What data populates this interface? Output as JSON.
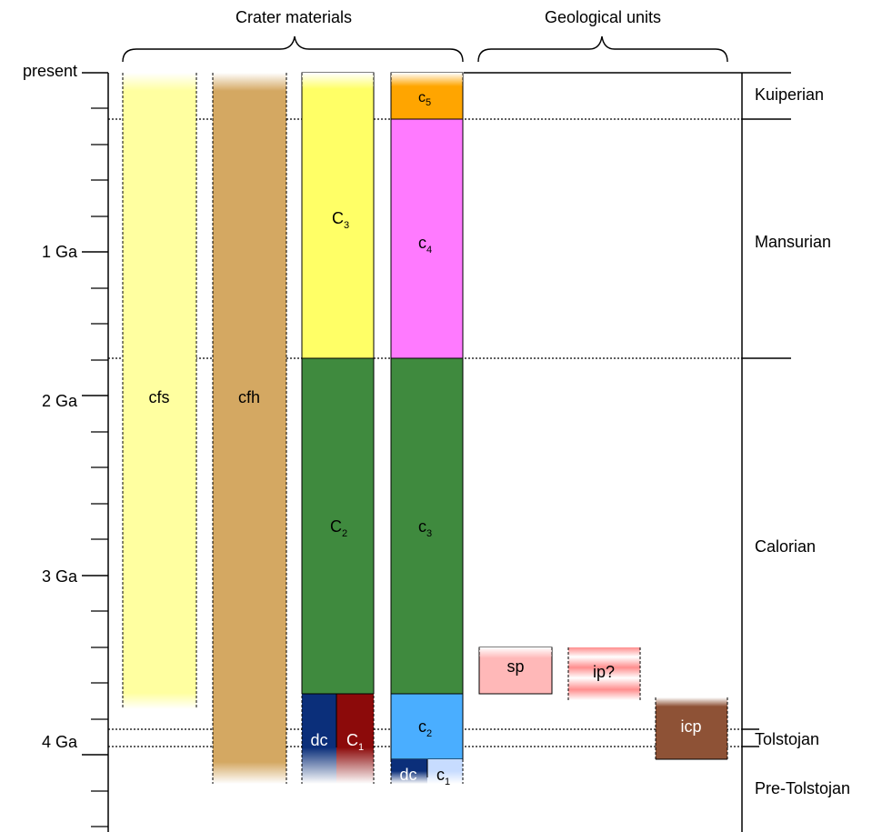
{
  "headers": {
    "crater_materials": "Crater materials",
    "geological_units": "Geological units"
  },
  "time_axis": {
    "top_label": "present",
    "ticks": [
      {
        "label": "1 Ga"
      },
      {
        "label": "2 Ga"
      },
      {
        "label": "3 Ga"
      },
      {
        "label": "4 Ga"
      }
    ]
  },
  "periods": [
    {
      "name": "Kuiperian"
    },
    {
      "name": "Mansurian"
    },
    {
      "name": "Calorian"
    },
    {
      "name": "Tolstojan"
    },
    {
      "name": "Pre-Tolstojan"
    }
  ],
  "columns": {
    "cfs": {
      "label": "cfs",
      "color": "#ffffa0"
    },
    "cfh": {
      "label": "cfh",
      "color": "#d4a862"
    },
    "col3": {
      "C3": {
        "base": "C",
        "sub": "3",
        "color": "#ffff66"
      },
      "C2": {
        "base": "C",
        "sub": "2",
        "color": "#3f8a3e"
      },
      "dc": {
        "label": "dc",
        "color": "#0b2f7a"
      },
      "C1": {
        "base": "C",
        "sub": "1",
        "color": "#8c0a0a"
      }
    },
    "col4": {
      "c5": {
        "base": "c",
        "sub": "5",
        "color": "#ffa500"
      },
      "c4": {
        "base": "c",
        "sub": "4",
        "color": "#ff7aff"
      },
      "c3": {
        "base": "c",
        "sub": "3",
        "color": "#3f8a3e"
      },
      "c2": {
        "base": "c",
        "sub": "2",
        "color": "#4aaeff"
      },
      "dc": {
        "label": "dc",
        "color": "#0b2f7a"
      },
      "c1": {
        "base": "c",
        "sub": "1",
        "color": "#c7dcff"
      }
    }
  },
  "units": {
    "sp": {
      "label": "sp",
      "color": "#ffb8b8"
    },
    "ip": {
      "label": "ip?",
      "color": "#ff8e8e"
    },
    "icp": {
      "label": "icp",
      "color": "#8e5236"
    }
  }
}
